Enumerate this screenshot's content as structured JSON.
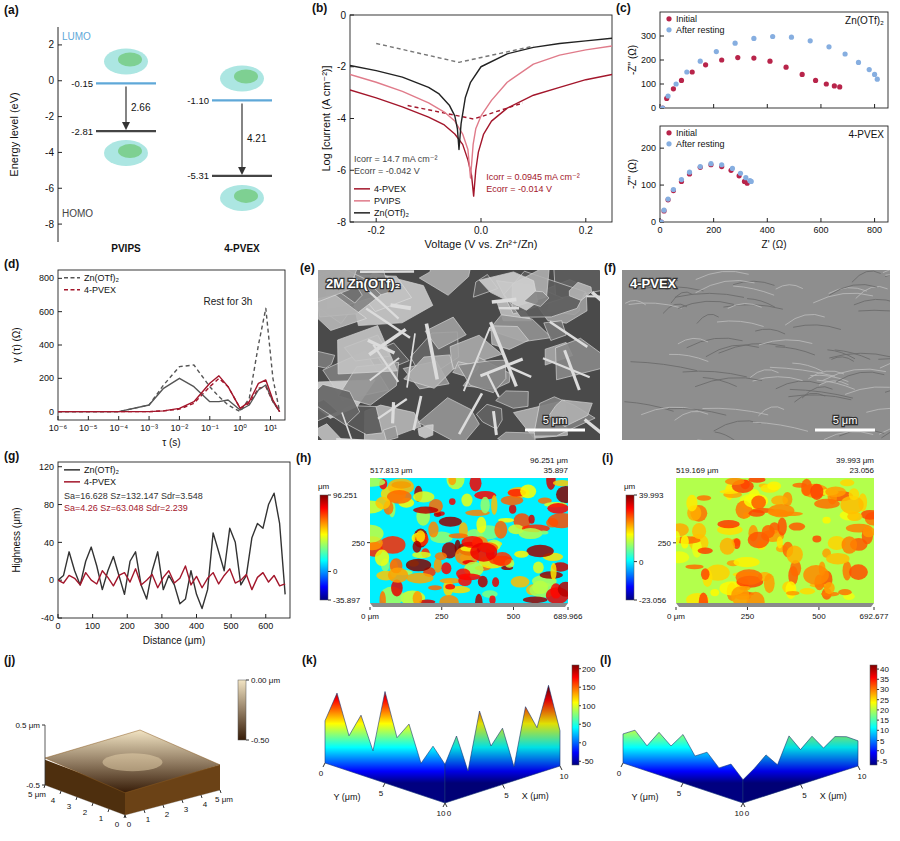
{
  "chart_data": [
    {
      "panel": "(a)",
      "type": "energy_level",
      "y_label": "Energy level (eV)",
      "categories": [
        "PVIPS",
        "4-PVEX"
      ],
      "ylim": [
        -9,
        3
      ],
      "yticks": [
        2,
        0,
        -2,
        -4,
        -6,
        -8
      ],
      "data_labels": true,
      "series": [
        {
          "name": "LUMO",
          "color": "#5fa8d8",
          "values": [
            -0.15,
            -1.1
          ],
          "value_labels": [
            "-0.15",
            "-1.10"
          ]
        },
        {
          "name": "HOMO",
          "color": "#444444",
          "values": [
            -2.81,
            -5.31
          ]
        }
      ],
      "gaps": [
        2.66,
        4.21
      ]
    },
    {
      "panel": "(b)",
      "type": "line",
      "x_label": "Voltage (V vs. Zn²⁺/Zn)",
      "y_label": "Log [current (A cm⁻²)]",
      "xlim": [
        -0.25,
        0.25
      ],
      "xticks": [
        -0.2,
        {
          "value": 0,
          "label": "0.0"
        },
        0.2
      ],
      "ylim": [
        -8,
        0
      ],
      "yticks": [
        -8,
        -6,
        -4,
        -2,
        0
      ],
      "legend": "lower left",
      "series": [
        {
          "name": "4-PVEX",
          "color": "#a3162b",
          "x": [
            -0.25,
            -0.2,
            -0.15,
            -0.1,
            -0.07,
            -0.05,
            -0.035,
            -0.025,
            -0.018,
            -0.014,
            -0.01,
            -0.005,
            0.005,
            0.02,
            0.05,
            0.1,
            0.15,
            0.2,
            0.25
          ],
          "values": [
            -2.9,
            -3.2,
            -3.55,
            -3.95,
            -4.25,
            -4.6,
            -5.0,
            -5.6,
            -6.2,
            -7.0,
            -6.0,
            -5.3,
            -4.6,
            -4.1,
            -3.6,
            -3.1,
            -2.8,
            -2.5,
            -2.3
          ]
        },
        {
          "name": "PVIPS",
          "color": "#e07b8a",
          "x": [
            -0.25,
            -0.2,
            -0.15,
            -0.1,
            -0.07,
            -0.05,
            -0.035,
            -0.025,
            -0.02,
            -0.015,
            -0.01,
            0,
            0.02,
            0.05,
            0.1,
            0.15,
            0.2,
            0.25
          ],
          "values": [
            -2.3,
            -2.6,
            -2.95,
            -3.4,
            -3.75,
            -4.1,
            -4.6,
            -5.2,
            -6.3,
            -5.0,
            -4.4,
            -3.9,
            -3.3,
            -2.6,
            -1.9,
            -1.55,
            -1.35,
            -1.2
          ]
        },
        {
          "name": "Zn(OTf)₂",
          "color": "#222222",
          "x": [
            -0.25,
            -0.2,
            -0.15,
            -0.1,
            -0.08,
            -0.06,
            -0.05,
            -0.045,
            -0.042,
            -0.038,
            -0.03,
            -0.02,
            0,
            0.05,
            0.1,
            0.15,
            0.2,
            0.25
          ],
          "values": [
            -1.95,
            -2.15,
            -2.4,
            -2.8,
            -3.05,
            -3.5,
            -3.9,
            -4.4,
            -5.2,
            -4.2,
            -3.2,
            -2.6,
            -2.0,
            -1.5,
            -1.25,
            -1.1,
            -1.0,
            -0.9
          ]
        }
      ],
      "fit_lines": [
        {
          "color": "#777777",
          "line_style": "dashed",
          "x": [
            -0.2,
            -0.042,
            0.1
          ],
          "values": [
            -1.1,
            -1.83,
            -1.2
          ]
        },
        {
          "color": "#a3162b",
          "line_style": "dashed",
          "x": [
            -0.14,
            -0.014,
            0.08
          ],
          "values": [
            -3.5,
            -4.02,
            -3.4
          ]
        }
      ],
      "annotations": [
        {
          "text": "Icorr = 14.7 mA cm⁻²",
          "color": "#444444"
        },
        {
          "text": "Ecorr = -0.042 V",
          "color": "#444444"
        },
        {
          "text": "Icorr = 0.0945 mA cm⁻²",
          "color": "#a3162b"
        },
        {
          "text": "Ecorr = -0.014 V",
          "color": "#a3162b"
        }
      ]
    },
    {
      "panel": "(c)",
      "type": "scatter",
      "title": "Zn(OTf)₂",
      "y_label": "-Z'' (Ω)",
      "xlim": [
        0,
        850
      ],
      "xticks": [
        0,
        200,
        400,
        600,
        800
      ],
      "ylim": [
        0,
        400
      ],
      "yticks": [
        0,
        100,
        200,
        300
      ],
      "tick_labels": "y",
      "legend": "upper left",
      "marker": "circle",
      "series": [
        {
          "name": "Initial",
          "color": "#b8244a",
          "x": [
            10,
            25,
            50,
            80,
            120,
            170,
            230,
            290,
            350,
            410,
            470,
            530,
            580,
            620,
            650,
            670
          ],
          "values": [
            0,
            40,
            80,
            115,
            150,
            180,
            200,
            210,
            208,
            195,
            170,
            140,
            115,
            100,
            92,
            88
          ]
        },
        {
          "name": "After resting",
          "color": "#86aee0",
          "x": [
            10,
            30,
            60,
            100,
            150,
            210,
            280,
            350,
            420,
            490,
            560,
            630,
            690,
            740,
            780,
            800,
            810
          ],
          "values": [
            0,
            50,
            100,
            150,
            195,
            235,
            270,
            290,
            298,
            295,
            280,
            255,
            225,
            190,
            160,
            140,
            120
          ]
        }
      ]
    },
    {
      "type": "scatter",
      "title": "4-PVEX",
      "x_label": "Z' (Ω)",
      "y_label": "-Z'' (Ω)",
      "xlim": [
        0,
        850
      ],
      "xticks": [
        0,
        200,
        400,
        600,
        800
      ],
      "ylim": [
        0,
        260
      ],
      "yticks": [
        0,
        100,
        200
      ],
      "legend": "upper left",
      "marker": "circle",
      "series": [
        {
          "name": "Initial",
          "color": "#b8244a",
          "x": [
            5,
            15,
            30,
            50,
            80,
            110,
            150,
            190,
            230,
            265,
            295,
            315,
            325
          ],
          "values": [
            0,
            30,
            60,
            85,
            110,
            130,
            148,
            155,
            150,
            140,
            125,
            110,
            105
          ]
        },
        {
          "name": "After resting",
          "color": "#86aee0",
          "x": [
            5,
            15,
            30,
            50,
            80,
            110,
            150,
            190,
            230,
            270,
            300,
            320,
            335,
            340
          ],
          "values": [
            0,
            32,
            62,
            88,
            115,
            135,
            150,
            158,
            155,
            145,
            132,
            120,
            112,
            110
          ]
        }
      ]
    },
    {
      "panel": "(d)",
      "type": "line",
      "log": "x",
      "x_label": "τ (s)",
      "y_label": "γ (τ) (Ω)",
      "xlim": [
        1e-06,
        30
      ],
      "xticks": [
        {
          "value": 1e-06,
          "label": "10⁻⁶"
        },
        {
          "value": 1e-05,
          "label": "10⁻⁵"
        },
        {
          "value": 0.0001,
          "label": "10⁻⁴"
        },
        {
          "value": 0.001,
          "label": "10⁻³"
        },
        {
          "value": 0.01,
          "label": "10⁻²"
        },
        {
          "value": 0.1,
          "label": "10⁻¹"
        },
        {
          "value": 1,
          "label": "10⁰"
        },
        {
          "value": 10,
          "label": "10¹"
        }
      ],
      "ylim": [
        -50,
        850
      ],
      "yticks": [
        0,
        200,
        400,
        600,
        800
      ],
      "legend": "upper left",
      "x": [
        1e-06,
        0.0001,
        0.001,
        0.003,
        0.01,
        0.03,
        0.1,
        0.2,
        0.4,
        1,
        2,
        4,
        7,
        12,
        20
      ],
      "series": [
        {
          "name": "Zn(OTf)₂",
          "color": "#555555",
          "line_style": "dashed",
          "values": [
            0,
            0,
            40,
            160,
            270,
            280,
            150,
            90,
            40,
            0,
            80,
            400,
            620,
            200,
            0
          ]
        },
        {
          "name": "4-PVEX",
          "color": "#a3162b",
          "line_style": "dashed",
          "values": [
            0,
            0,
            0,
            5,
            15,
            50,
            150,
            200,
            150,
            20,
            50,
            140,
            150,
            60,
            0
          ]
        },
        {
          "color": "#555555",
          "line_style": "solid",
          "values": [
            0,
            0,
            40,
            140,
            200,
            150,
            60,
            60,
            70,
            10,
            40,
            130,
            160,
            60,
            0
          ]
        },
        {
          "color": "#a3162b",
          "line_style": "solid",
          "values": [
            0,
            0,
            0,
            5,
            20,
            60,
            170,
            215,
            150,
            20,
            60,
            170,
            190,
            70,
            0
          ]
        }
      ],
      "annotations": [
        {
          "text": "Rest for 3h",
          "color": "#222222"
        }
      ]
    },
    {
      "panel": "(g)",
      "type": "line",
      "x_label": "Distance (μm)",
      "y_label": "Highness (μm)",
      "xlim": [
        0,
        670
      ],
      "xticks": [
        0,
        100,
        200,
        300,
        400,
        500,
        600
      ],
      "ylim": [
        -40,
        125
      ],
      "yticks": [
        -40,
        0,
        40,
        80,
        120
      ],
      "legend": "upper left",
      "x": [
        0,
        16,
        32,
        48,
        64,
        80,
        96,
        112,
        128,
        144,
        160,
        176,
        192,
        208,
        224,
        240,
        256,
        272,
        288,
        304,
        320,
        336,
        352,
        368,
        384,
        400,
        416,
        432,
        448,
        464,
        480,
        496,
        512,
        528,
        544,
        560,
        576,
        592,
        608,
        624,
        640,
        656
      ],
      "series": [
        {
          "name": "Zn(OTf)₂",
          "color": "#333333",
          "values": [
            0,
            5,
            30,
            10,
            -5,
            20,
            35,
            15,
            -10,
            10,
            25,
            5,
            -15,
            20,
            30,
            -5,
            -20,
            10,
            30,
            -10,
            5,
            -5,
            -25,
            -20,
            10,
            -15,
            -30,
            -10,
            50,
            30,
            10,
            55,
            40,
            -5,
            5,
            45,
            60,
            55,
            80,
            92,
            60,
            -15
          ]
        },
        {
          "name": "4-PVEX",
          "color": "#a3162b",
          "values": [
            0,
            -3,
            5,
            2,
            -5,
            8,
            0,
            -4,
            10,
            3,
            -6,
            5,
            8,
            -2,
            12,
            -5,
            0,
            6,
            -8,
            3,
            10,
            -3,
            2,
            15,
            -5,
            4,
            -8,
            2,
            8,
            -4,
            5,
            12,
            -3,
            0,
            6,
            -10,
            3,
            8,
            -2,
            5,
            -6,
            -4
          ]
        }
      ],
      "annotations": [
        {
          "text": "Sa=16.628  Sz=132.147  Sdr=3.548",
          "color": "#333333"
        },
        {
          "text": "Sa=4.26  Sz=63.048  Sdr=2.239",
          "color": "#a3162b"
        }
      ]
    }
  ],
  "images": [
    {
      "panel": "(e)",
      "type": "sem",
      "caption": "2M Zn(OTf)₂",
      "scale_bar": "5 μm"
    },
    {
      "panel": "(f)",
      "type": "sem",
      "caption": "4-PVEX",
      "scale_bar": "5 μm"
    },
    {
      "panel": "(h)",
      "type": "topography",
      "xlim": [
        0,
        689.966
      ],
      "xticks": [
        {
          "value": 0,
          "label": "0 μm"
        },
        250,
        500,
        689.966
      ],
      "ylim": [
        0,
        517.813
      ],
      "yticks": [
        250
      ],
      "corner_labels": [
        "517.813 μm",
        "96.251 μm",
        "35.897"
      ],
      "colorbar": {
        "title": "μm",
        "range": [
          -35.897,
          96.251
        ],
        "ticks": [
          96.251,
          0,
          -35.897
        ]
      }
    },
    {
      "panel": "(i)",
      "type": "topography",
      "xlim": [
        0,
        692.677
      ],
      "xticks": [
        {
          "value": 0,
          "label": "0 μm"
        },
        250,
        500,
        692.677
      ],
      "ylim": [
        0,
        519.169
      ],
      "yticks": [
        250
      ],
      "corner_labels": [
        "519.169 μm",
        "39.993 μm",
        "23.056"
      ],
      "colorbar": {
        "title": "μm",
        "range": [
          -23.056,
          39.993
        ],
        "ticks": [
          39.993,
          0,
          -23.056
        ]
      }
    },
    {
      "panel": "(j)",
      "type": "afm_3d",
      "xlim": [
        0,
        5
      ],
      "xticks": [
        0,
        1,
        2,
        3,
        4,
        {
          "value": 5,
          "label": "5 μm"
        }
      ],
      "ylim": [
        0,
        5
      ],
      "yticks": [
        0,
        1,
        2,
        3,
        4,
        {
          "value": 5,
          "label": "5 μm"
        }
      ],
      "zlim": [
        -0.5,
        0.5
      ],
      "zticks": [
        {
          "value": 0.5,
          "label": "0.5 μm"
        },
        -0.5
      ],
      "colorbar": {
        "range": [
          -0.5,
          0
        ],
        "ticks": [
          {
            "value": 0,
            "label": "0.00 μm"
          },
          {
            "value": -0.5,
            "label": "-0.50"
          }
        ]
      }
    },
    {
      "panel": "(k)",
      "type": "surface",
      "x_label": "X (μm)",
      "y_label": "Y (μm)",
      "xlim": [
        0,
        10
      ],
      "xticks": [
        0,
        5,
        10
      ],
      "ylim": [
        0,
        10
      ],
      "yticks": [
        0,
        5,
        10
      ],
      "colorbar": {
        "range": [
          -60,
          210
        ],
        "ticks": [
          -50,
          0,
          50,
          100,
          150,
          200
        ]
      },
      "profile_y": [
        60,
        150,
        40,
        110,
        20,
        200,
        80,
        130,
        30,
        90,
        50
      ],
      "profile_x": [
        50,
        120,
        10,
        170,
        60,
        100,
        -20,
        140,
        70,
        180,
        40
      ]
    },
    {
      "panel": "(l)",
      "type": "surface",
      "x_label": "X (μm)",
      "y_label": "Y (μm)",
      "xlim": [
        0,
        10
      ],
      "xticks": [
        0,
        5,
        10
      ],
      "ylim": [
        0,
        10
      ],
      "yticks": [
        0,
        5,
        10
      ],
      "colorbar": {
        "range": [
          -7,
          42
        ],
        "ticks": [
          -5,
          0,
          5,
          10,
          15,
          20,
          25,
          30,
          35,
          40
        ]
      },
      "profile_y": [
        8,
        12,
        6,
        15,
        10,
        18,
        9,
        13,
        7,
        11,
        5
      ],
      "profile_x": [
        5,
        9,
        14,
        7,
        20,
        11,
        16,
        8,
        12,
        10,
        6
      ]
    }
  ]
}
